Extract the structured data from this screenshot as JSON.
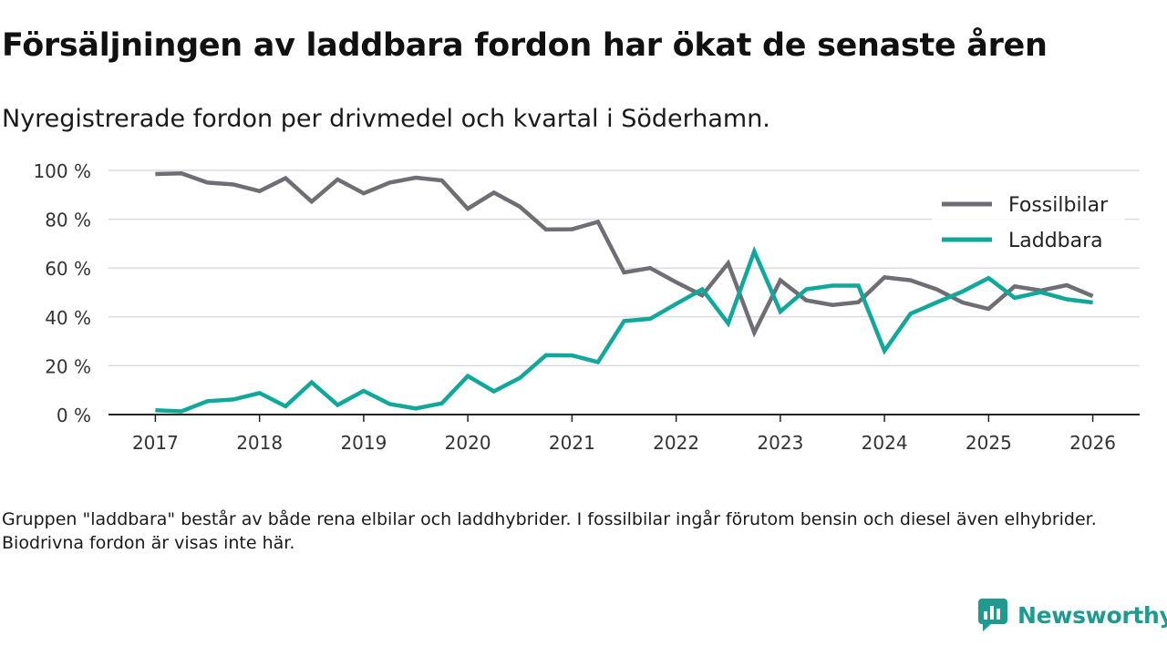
{
  "title": "Försäljningen av laddbara fordon har ökat de senaste åren",
  "subtitle": "Nyregistrerade fordon per drivmedel och kvartal i Söderhamn.",
  "note": "Gruppen \"laddbara\" består av både rena elbilar och laddhybrider. I fossilbilar ingår förutom bensin och diesel även elhybrider. Biodrivna fordon är visas inte här.",
  "brand": {
    "name": "Newsworthy"
  },
  "chart_data": {
    "type": "line",
    "title": "Försäljningen av laddbara fordon har ökat de senaste åren",
    "xlabel": "",
    "ylabel": "",
    "xlim": [
      2016.55,
      2026.45
    ],
    "ylim": [
      0,
      100
    ],
    "x": [
      2017,
      2017.25,
      2017.5,
      2017.75,
      2018,
      2018.25,
      2018.5,
      2018.75,
      2019,
      2019.25,
      2019.5,
      2019.75,
      2020,
      2020.25,
      2020.5,
      2020.75,
      2021,
      2021.25,
      2021.5,
      2021.75,
      2022,
      2022.25,
      2022.5,
      2022.75,
      2023,
      2023.25,
      2023.5,
      2023.75,
      2024,
      2024.25,
      2024.5,
      2024.75,
      2025,
      2025.25,
      2025.5,
      2025.75,
      2026
    ],
    "x_ticks": [
      2017,
      2018,
      2019,
      2020,
      2021,
      2022,
      2023,
      2024,
      2025,
      2026
    ],
    "y_ticks": [
      0,
      20,
      40,
      60,
      80,
      100
    ],
    "y_tick_labels": [
      "0 %",
      "20 %",
      "40 %",
      "60 %",
      "80 %",
      "100 %"
    ],
    "x_tick_labels": [
      "2017",
      "2018",
      "2019",
      "2020",
      "2021",
      "2022",
      "2023",
      "2024",
      "2025",
      "2026"
    ],
    "grid": true,
    "legend_position": "top-right",
    "series": [
      {
        "name": "Fossilbilar",
        "color": "#6f6e74",
        "values": [
          98.5,
          98.8,
          95,
          94.2,
          91.5,
          96.8,
          87.2,
          96.3,
          90.6,
          95,
          97,
          95.9,
          84.3,
          90.9,
          85.1,
          75.8,
          75.9,
          78.9,
          58.2,
          60,
          54.2,
          48.8,
          62,
          33.6,
          55,
          46.8,
          44.9,
          46,
          56.2,
          55,
          51.3,
          45.9,
          43.3,
          52.5,
          50.8,
          53,
          48.5
        ]
      },
      {
        "name": "Laddbara",
        "color": "#10a89b",
        "values": [
          1.8,
          1.3,
          5.5,
          6.2,
          8.8,
          3.4,
          13.2,
          3.9,
          9.7,
          4.3,
          2.5,
          4.6,
          15.8,
          9.5,
          15,
          24.3,
          24.2,
          21.5,
          38.3,
          39.2,
          45.3,
          51.3,
          37.3,
          66.8,
          42.2,
          51.3,
          52.8,
          52.8,
          26.1,
          41.3,
          45.9,
          50.4,
          55.9,
          47.8,
          50.1,
          47.2,
          45.9
        ]
      }
    ]
  }
}
